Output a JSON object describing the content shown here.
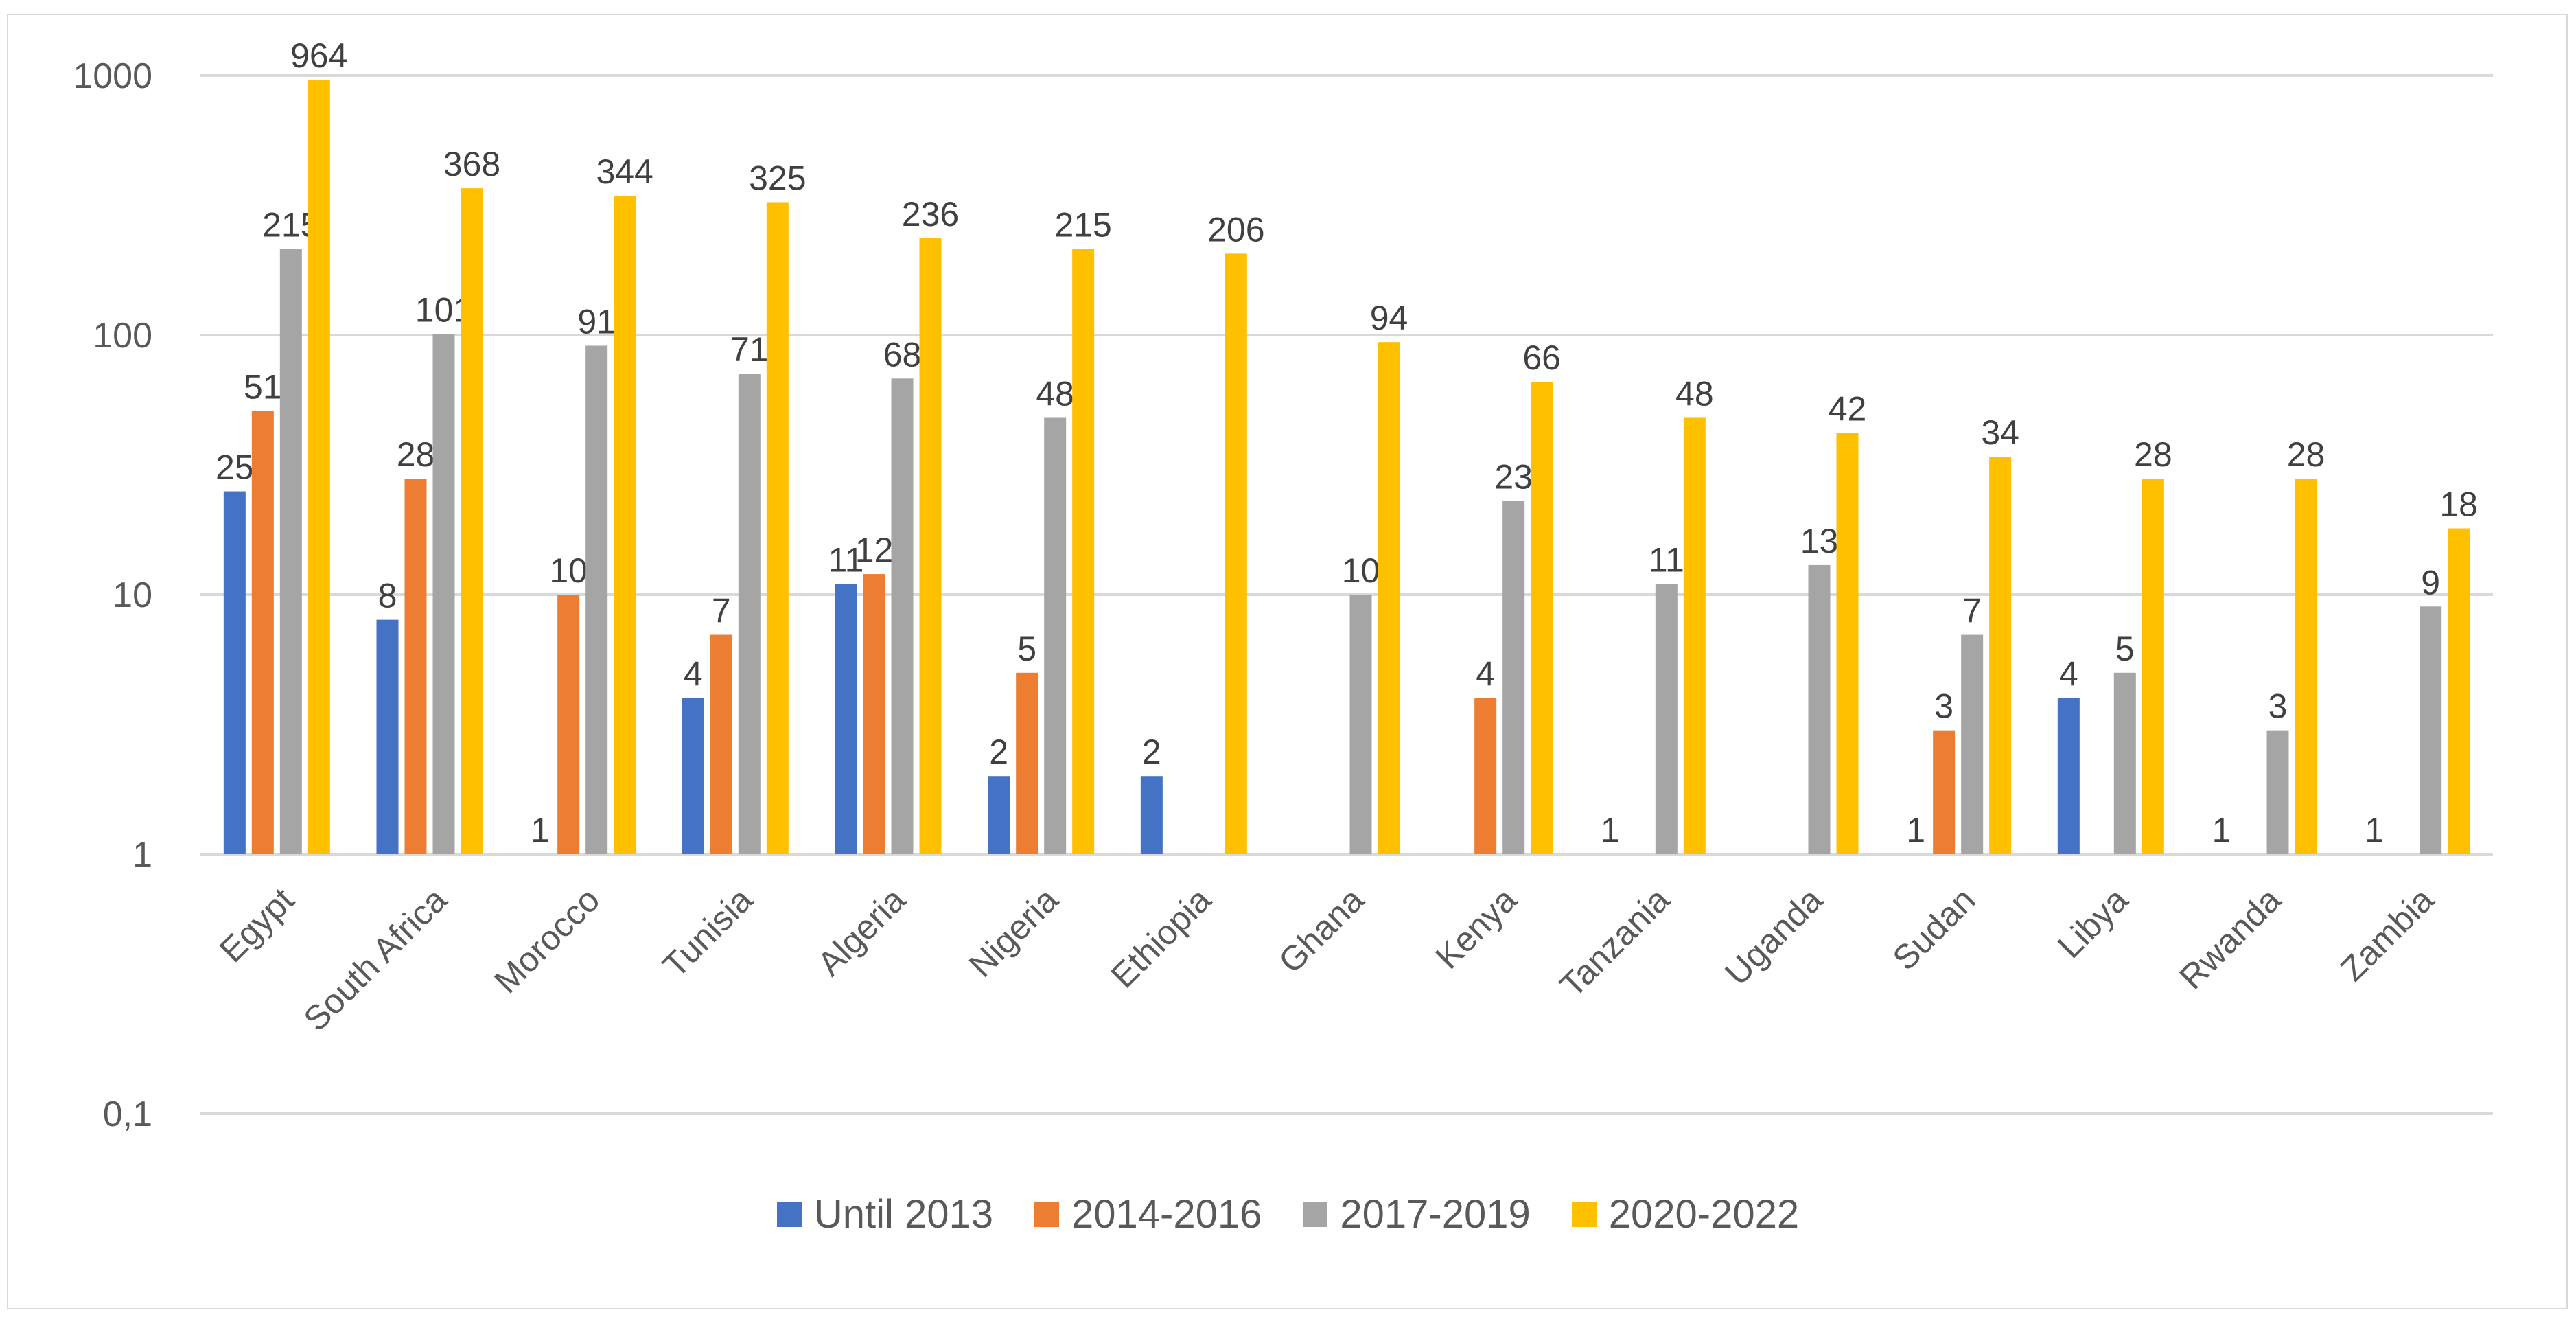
{
  "chart_data": {
    "type": "bar",
    "scale": "log",
    "ylim": [
      0.1,
      1000
    ],
    "y_ticks": [
      "0,1",
      "1",
      "10",
      "100",
      "1000"
    ],
    "y_tick_values": [
      0.1,
      1,
      10,
      100,
      1000
    ],
    "grid": true,
    "legend_position": "bottom",
    "categories": [
      "Egypt",
      "South Africa",
      "Morocco",
      "Tunisia",
      "Algeria",
      "Nigeria",
      "Ethiopia",
      "Ghana",
      "Kenya",
      "Tanzania",
      "Uganda",
      "Sudan",
      "Libya",
      "Rwanda",
      "Zambia"
    ],
    "series": [
      {
        "name": "Until 2013",
        "color": "#4472c4",
        "values": [
          25,
          8,
          1,
          4,
          11,
          2,
          2,
          null,
          null,
          1,
          null,
          1,
          4,
          1,
          1
        ]
      },
      {
        "name": "2014-2016",
        "color": "#ed7d31",
        "values": [
          51,
          28,
          10,
          7,
          12,
          5,
          null,
          null,
          4,
          null,
          null,
          3,
          null,
          null,
          null
        ]
      },
      {
        "name": "2017-2019",
        "color": "#a5a5a5",
        "values": [
          215,
          101,
          91,
          71,
          68,
          48,
          null,
          10,
          23,
          11,
          13,
          7,
          5,
          3,
          9
        ]
      },
      {
        "name": "2020-2022",
        "color": "#ffc000",
        "values": [
          964,
          368,
          344,
          325,
          236,
          215,
          206,
          94,
          66,
          48,
          42,
          34,
          28,
          28,
          18
        ]
      }
    ]
  }
}
